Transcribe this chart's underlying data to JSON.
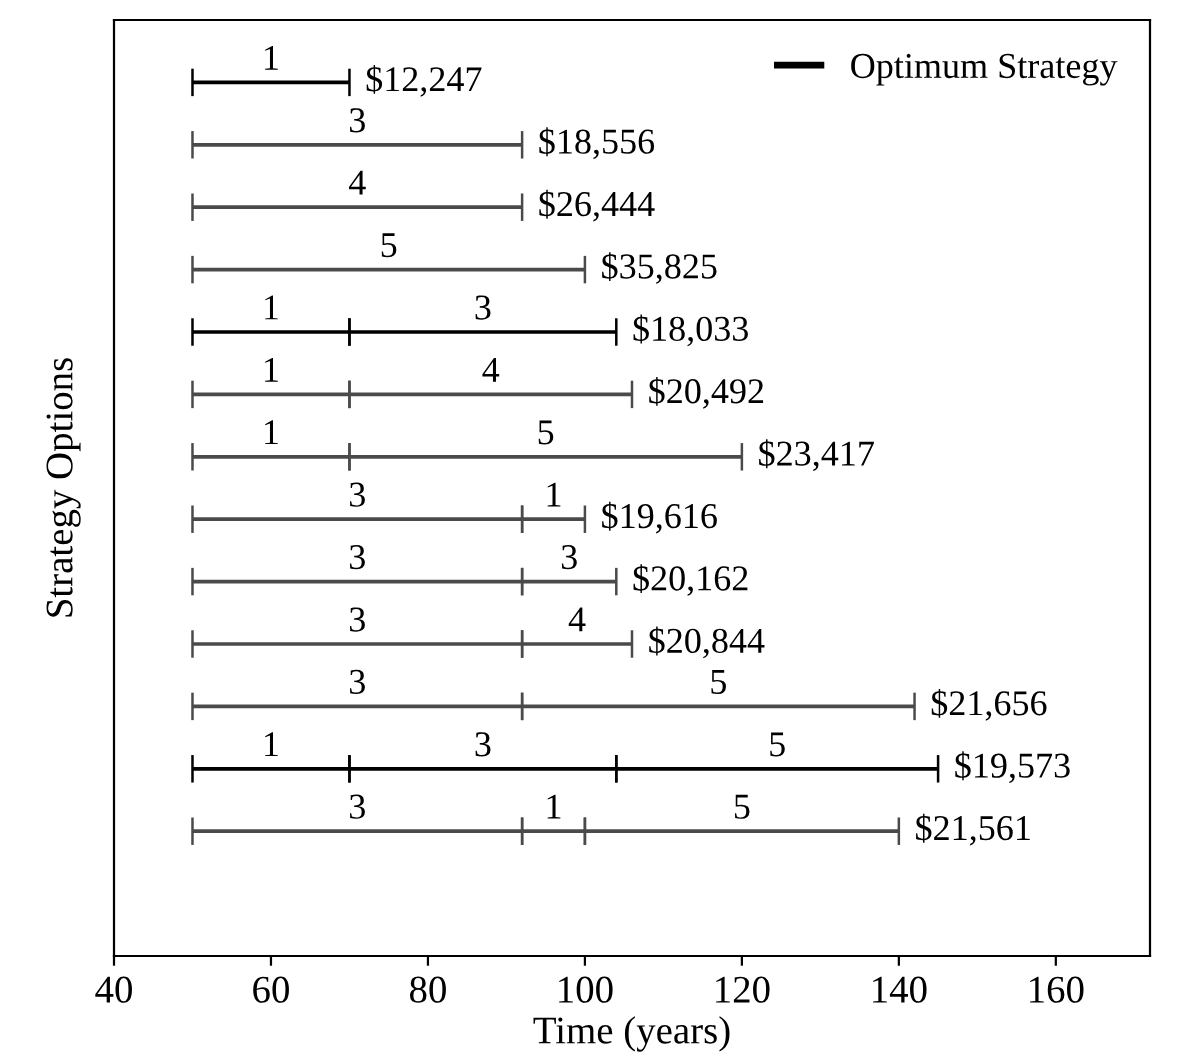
{
  "chart_data": {
    "type": "bar",
    "orientation": "horizontal",
    "xlabel": "Time (years)",
    "ylabel": "Strategy Options",
    "categories": [
      null,
      null,
      null,
      null,
      null,
      null,
      null,
      null,
      null,
      null,
      null,
      null,
      null,
      null
    ],
    "series": [
      {
        "color": "#4a4a4a",
        "base": [
          null,
          50,
          50,
          50,
          null,
          50,
          50,
          50,
          50,
          50,
          50,
          null,
          50,
          null
        ],
        "values": [
          null,
          42,
          42,
          50,
          null,
          20,
          20,
          42,
          42,
          42,
          42,
          null,
          42,
          null
        ]
      },
      {
        "color": "#4a4a4a",
        "base": [
          null,
          null,
          null,
          null,
          null,
          70,
          70,
          92,
          92,
          92,
          92,
          null,
          92,
          null
        ],
        "values": [
          null,
          null,
          null,
          null,
          null,
          36,
          50,
          8,
          12,
          14,
          50,
          null,
          8,
          null
        ]
      },
      {
        "color": "#4a4a4a",
        "base": [
          null,
          null,
          null,
          null,
          null,
          null,
          null,
          null,
          null,
          null,
          null,
          null,
          100,
          null
        ],
        "values": [
          null,
          null,
          null,
          null,
          null,
          null,
          null,
          null,
          null,
          null,
          null,
          null,
          40,
          null
        ]
      },
      {
        "name": "Optimum Strategy",
        "color": "#000000",
        "base": [
          50,
          null,
          null,
          null,
          50,
          null,
          null,
          null,
          null,
          null,
          null,
          50,
          null,
          null
        ],
        "values": [
          20,
          null,
          null,
          null,
          20,
          null,
          null,
          null,
          null,
          null,
          null,
          20,
          null,
          null
        ]
      },
      {
        "color": "#000000",
        "base": [
          null,
          null,
          null,
          null,
          70,
          null,
          null,
          null,
          null,
          null,
          null,
          70,
          null,
          null
        ],
        "values": [
          null,
          null,
          null,
          null,
          34,
          null,
          null,
          null,
          null,
          null,
          null,
          34,
          null,
          null
        ]
      },
      {
        "color": "#000000",
        "base": [
          null,
          null,
          null,
          null,
          null,
          null,
          null,
          null,
          null,
          null,
          null,
          104,
          null,
          null
        ],
        "values": [
          null,
          null,
          null,
          null,
          null,
          null,
          null,
          null,
          null,
          null,
          null,
          41,
          null,
          null
        ]
      }
    ],
    "annotations": [
      "1",
      "$12,247",
      "3",
      "$18,556",
      "4",
      "$26,444",
      "5",
      "$35,825",
      "1",
      "3",
      "$18,033",
      "1",
      "4",
      "$20,492",
      "1",
      "5",
      "$23,417",
      "3",
      "1",
      "$19,616",
      "3",
      "3",
      "$20,162",
      "3",
      "4",
      "$20,844",
      "3",
      "5",
      "$21,656",
      "1",
      "3",
      "5",
      "$19,573",
      "3",
      "1",
      "5",
      "$21,561"
    ],
    "xlim": [
      40,
      172
    ],
    "xticks": [
      40,
      60,
      80,
      100,
      120,
      140,
      160
    ],
    "tick_labels": "x",
    "grid": false,
    "legend": "top right"
  }
}
